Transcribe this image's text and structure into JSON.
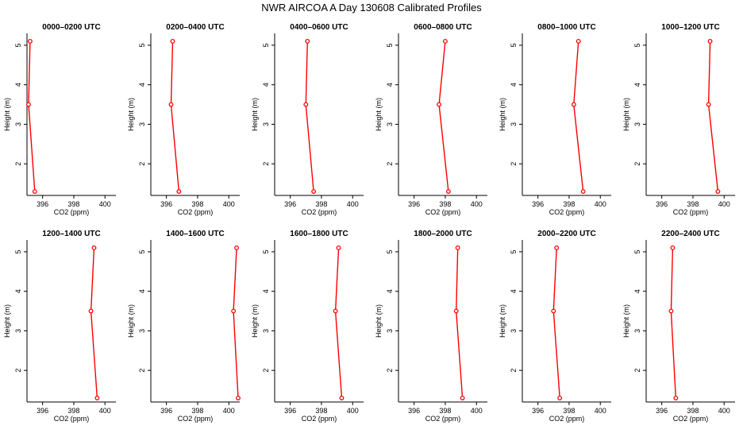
{
  "figure": {
    "title": "NWR AIRCOA A  Day 130608  Calibrated Profiles"
  },
  "chart_data": [
    {
      "type": "line",
      "title": "0000–0200 UTC",
      "xlabel": "CO2 (ppm)",
      "ylabel": "Height (m)",
      "xlim": [
        395,
        400.7
      ],
      "ylim": [
        1.2,
        5.3
      ],
      "xticks": [
        396,
        398,
        400
      ],
      "yticks": [
        2,
        3,
        4,
        5
      ],
      "series": [
        {
          "x": [
            395.2,
            395.1,
            395.5
          ],
          "y": [
            5.1,
            3.5,
            1.3
          ]
        }
      ],
      "grid": false
    },
    {
      "type": "line",
      "title": "0200–0400 UTC",
      "xlabel": "CO2 (ppm)",
      "ylabel": "Height (m)",
      "xlim": [
        395,
        400.7
      ],
      "ylim": [
        1.2,
        5.3
      ],
      "xticks": [
        396,
        398,
        400
      ],
      "yticks": [
        2,
        3,
        4,
        5
      ],
      "series": [
        {
          "x": [
            396.4,
            396.3,
            396.8
          ],
          "y": [
            5.1,
            3.5,
            1.3
          ]
        }
      ],
      "grid": false
    },
    {
      "type": "line",
      "title": "0400–0600 UTC",
      "xlabel": "CO2 (ppm)",
      "ylabel": "Height (m)",
      "xlim": [
        395,
        400.7
      ],
      "ylim": [
        1.2,
        5.3
      ],
      "xticks": [
        396,
        398,
        400
      ],
      "yticks": [
        2,
        3,
        4,
        5
      ],
      "series": [
        {
          "x": [
            397.1,
            397.0,
            397.5
          ],
          "y": [
            5.1,
            3.5,
            1.3
          ]
        }
      ],
      "grid": false
    },
    {
      "type": "line",
      "title": "0600–0800 UTC",
      "xlabel": "CO2 (ppm)",
      "ylabel": "Height (m)",
      "xlim": [
        395,
        400.7
      ],
      "ylim": [
        1.2,
        5.3
      ],
      "xticks": [
        396,
        398,
        400
      ],
      "yticks": [
        2,
        3,
        4,
        5
      ],
      "series": [
        {
          "x": [
            398.0,
            397.6,
            398.2
          ],
          "y": [
            5.1,
            3.5,
            1.3
          ]
        }
      ],
      "grid": false
    },
    {
      "type": "line",
      "title": "0800–1000 UTC",
      "xlabel": "CO2 (ppm)",
      "ylabel": "Height (m)",
      "xlim": [
        395,
        400.7
      ],
      "ylim": [
        1.2,
        5.3
      ],
      "xticks": [
        396,
        398,
        400
      ],
      "yticks": [
        2,
        3,
        4,
        5
      ],
      "series": [
        {
          "x": [
            398.6,
            398.3,
            398.9
          ],
          "y": [
            5.1,
            3.5,
            1.3
          ]
        }
      ],
      "grid": false
    },
    {
      "type": "line",
      "title": "1000–1200 UTC",
      "xlabel": "CO2 (ppm)",
      "ylabel": "Height (m)",
      "xlim": [
        395,
        400.7
      ],
      "ylim": [
        1.2,
        5.3
      ],
      "xticks": [
        396,
        398,
        400
      ],
      "yticks": [
        2,
        3,
        4,
        5
      ],
      "series": [
        {
          "x": [
            399.1,
            399.0,
            399.6
          ],
          "y": [
            5.1,
            3.5,
            1.3
          ]
        }
      ],
      "grid": false
    },
    {
      "type": "line",
      "title": "1200–1400 UTC",
      "xlabel": "CO2 (ppm)",
      "ylabel": "Height (m)",
      "xlim": [
        395,
        400.7
      ],
      "ylim": [
        1.2,
        5.3
      ],
      "xticks": [
        396,
        398,
        400
      ],
      "yticks": [
        2,
        3,
        4,
        5
      ],
      "series": [
        {
          "x": [
            399.3,
            399.1,
            399.5
          ],
          "y": [
            5.1,
            3.5,
            1.3
          ]
        }
      ],
      "grid": false
    },
    {
      "type": "line",
      "title": "1400–1600 UTC",
      "xlabel": "CO2 (ppm)",
      "ylabel": "Height (m)",
      "xlim": [
        395,
        400.7
      ],
      "ylim": [
        1.2,
        5.3
      ],
      "xticks": [
        396,
        398,
        400
      ],
      "yticks": [
        2,
        3,
        4,
        5
      ],
      "series": [
        {
          "x": [
            400.5,
            400.3,
            400.6
          ],
          "y": [
            5.1,
            3.5,
            1.3
          ]
        }
      ],
      "grid": false
    },
    {
      "type": "line",
      "title": "1600–1800 UTC",
      "xlabel": "CO2 (ppm)",
      "ylabel": "Height (m)",
      "xlim": [
        395,
        400.7
      ],
      "ylim": [
        1.2,
        5.3
      ],
      "xticks": [
        396,
        398,
        400
      ],
      "yticks": [
        2,
        3,
        4,
        5
      ],
      "series": [
        {
          "x": [
            399.1,
            398.9,
            399.3
          ],
          "y": [
            5.1,
            3.5,
            1.3
          ]
        }
      ],
      "grid": false
    },
    {
      "type": "line",
      "title": "1800–2000 UTC",
      "xlabel": "CO2 (ppm)",
      "ylabel": "Height (m)",
      "xlim": [
        395,
        400.7
      ],
      "ylim": [
        1.2,
        5.3
      ],
      "xticks": [
        396,
        398,
        400
      ],
      "yticks": [
        2,
        3,
        4,
        5
      ],
      "series": [
        {
          "x": [
            398.8,
            398.7,
            399.1
          ],
          "y": [
            5.1,
            3.5,
            1.3
          ]
        }
      ],
      "grid": false
    },
    {
      "type": "line",
      "title": "2000–2200 UTC",
      "xlabel": "CO2 (ppm)",
      "ylabel": "Height (m)",
      "xlim": [
        395,
        400.7
      ],
      "ylim": [
        1.2,
        5.3
      ],
      "xticks": [
        396,
        398,
        400
      ],
      "yticks": [
        2,
        3,
        4,
        5
      ],
      "series": [
        {
          "x": [
            397.2,
            397.0,
            397.4
          ],
          "y": [
            5.1,
            3.5,
            1.3
          ]
        }
      ],
      "grid": false
    },
    {
      "type": "line",
      "title": "2200–2400 UTC",
      "xlabel": "CO2 (ppm)",
      "ylabel": "Height (m)",
      "xlim": [
        395,
        400.7
      ],
      "ylim": [
        1.2,
        5.3
      ],
      "xticks": [
        396,
        398,
        400
      ],
      "yticks": [
        2,
        3,
        4,
        5
      ],
      "series": [
        {
          "x": [
            396.7,
            396.6,
            396.9
          ],
          "y": [
            5.1,
            3.5,
            1.3
          ]
        }
      ],
      "grid": false
    }
  ],
  "colors": {
    "series": "#ff0000",
    "axis": "#000000",
    "background": "#ffffff"
  }
}
